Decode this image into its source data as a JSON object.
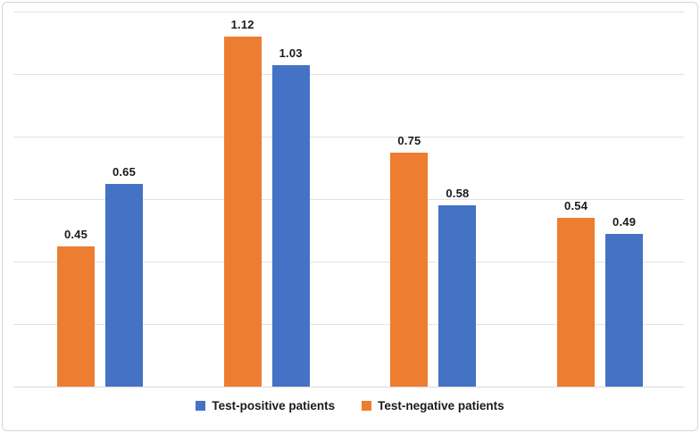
{
  "chart_data": {
    "type": "bar",
    "title": "",
    "xlabel": "",
    "ylabel": "",
    "categories": [
      "",
      "",
      "",
      ""
    ],
    "series": [
      {
        "name": "Test-negative patients",
        "color": "#ED7D31",
        "values": [
          0.45,
          1.12,
          0.75,
          0.54
        ]
      },
      {
        "name": "Test-positive patients",
        "color": "#4472C4",
        "values": [
          0.65,
          1.03,
          0.58,
          0.49
        ]
      }
    ],
    "data_labels_visible": true,
    "data_label_decimals": 2,
    "ylim": [
      0,
      1.2
    ],
    "ytick_step": 0.2,
    "grid": true,
    "axis_tick_labels_visible": false,
    "legend_position": "bottom",
    "legend_items": [
      {
        "label": "Test-positive patients",
        "color": "#4472C4"
      },
      {
        "label": "Test-negative patients",
        "color": "#ED7D31"
      }
    ]
  },
  "colors": {
    "grid": "#E2E2E2",
    "axis": "#D9D9D9",
    "frame_border": "#D6D6D6",
    "label_text": "#1A1A1A",
    "background": "#FFFFFF"
  }
}
